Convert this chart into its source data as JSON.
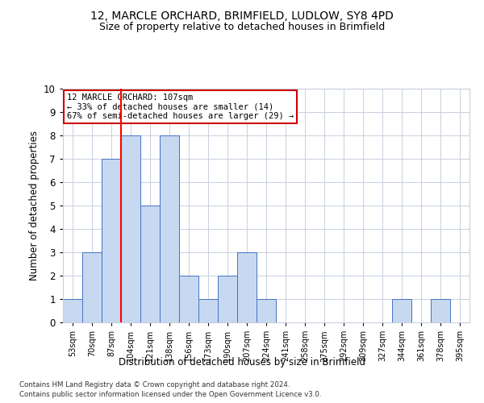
{
  "title1": "12, MARCLE ORCHARD, BRIMFIELD, LUDLOW, SY8 4PD",
  "title2": "Size of property relative to detached houses in Brimfield",
  "xlabel": "Distribution of detached houses by size in Brimfield",
  "ylabel": "Number of detached properties",
  "bin_labels": [
    "53sqm",
    "70sqm",
    "87sqm",
    "104sqm",
    "121sqm",
    "138sqm",
    "156sqm",
    "173sqm",
    "190sqm",
    "207sqm",
    "224sqm",
    "241sqm",
    "258sqm",
    "275sqm",
    "292sqm",
    "309sqm",
    "327sqm",
    "344sqm",
    "361sqm",
    "378sqm",
    "395sqm"
  ],
  "bar_heights": [
    1,
    3,
    7,
    8,
    5,
    8,
    2,
    1,
    2,
    3,
    1,
    0,
    0,
    0,
    0,
    0,
    0,
    1,
    0,
    1,
    0
  ],
  "bar_color": "#c6d9f0",
  "bar_edge_color": "#4472c4",
  "red_line_x": 2.5,
  "annotation_title": "12 MARCLE ORCHARD: 107sqm",
  "annotation_line1": "← 33% of detached houses are smaller (14)",
  "annotation_line2": "67% of semi-detached houses are larger (29) →",
  "annotation_box_color": "#ffffff",
  "annotation_box_edge": "#cc0000",
  "ylim": [
    0,
    10
  ],
  "footer1": "Contains HM Land Registry data © Crown copyright and database right 2024.",
  "footer2": "Contains public sector information licensed under the Open Government Licence v3.0.",
  "grid_color": "#c8d0de",
  "title1_fontsize": 10,
  "title2_fontsize": 9
}
